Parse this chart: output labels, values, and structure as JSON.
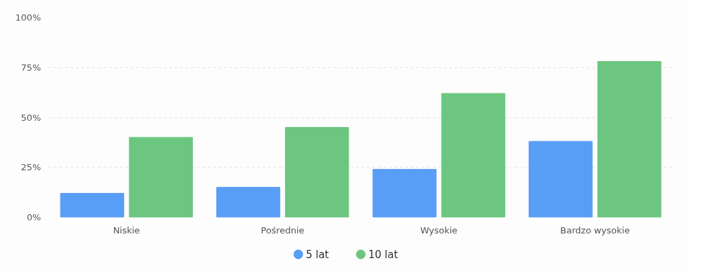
{
  "chart_data": {
    "type": "bar",
    "categories": [
      "Niskie",
      "Pośrednie",
      "Wysokie",
      "Bardzo wysokie"
    ],
    "series": [
      {
        "name": "5 lat",
        "color": "#589df6",
        "values": [
          12,
          15,
          24,
          38
        ]
      },
      {
        "name": "10 lat",
        "color": "#6cc680",
        "values": [
          40,
          45,
          62,
          78
        ]
      }
    ],
    "ylim": [
      0,
      100
    ],
    "yticks": [
      {
        "value": 0,
        "label": "0%"
      },
      {
        "value": 25,
        "label": "25%"
      },
      {
        "value": 50,
        "label": "50%"
      },
      {
        "value": 75,
        "label": "75%"
      },
      {
        "value": 100,
        "label": "100%"
      }
    ],
    "grid": "y",
    "legend": "bottom"
  }
}
